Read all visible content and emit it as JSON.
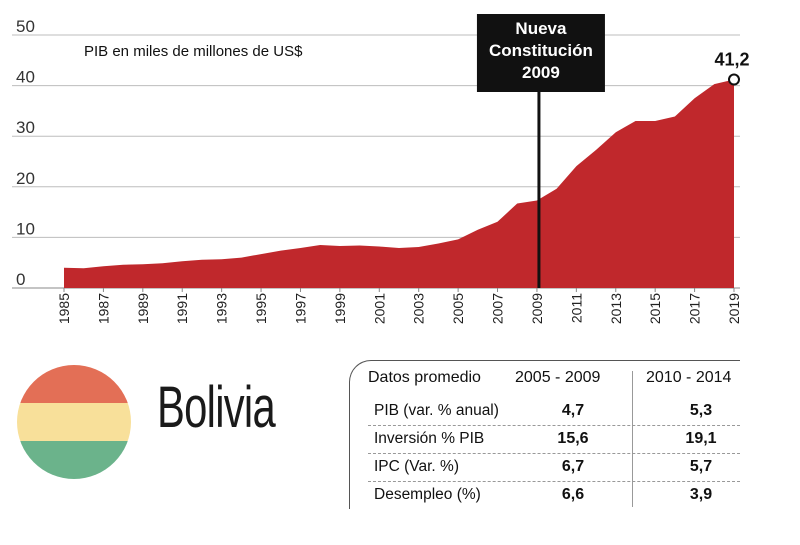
{
  "chart_data": {
    "type": "area",
    "subtitle": "PIB en miles de millones de US$",
    "ylim": [
      0,
      50
    ],
    "yticks": [
      0,
      10,
      20,
      30,
      40,
      50
    ],
    "x": [
      1985,
      1986,
      1987,
      1988,
      1989,
      1990,
      1991,
      1992,
      1993,
      1994,
      1995,
      1996,
      1997,
      1998,
      1999,
      2000,
      2001,
      2002,
      2003,
      2004,
      2005,
      2006,
      2007,
      2008,
      2009,
      2010,
      2011,
      2012,
      2013,
      2014,
      2015,
      2016,
      2017,
      2018,
      2019
    ],
    "xticks": [
      "1985",
      "1987",
      "1989",
      "1991",
      "1993",
      "1995",
      "1997",
      "1999",
      "2001",
      "2003",
      "2005",
      "2007",
      "2009",
      "2011",
      "2013",
      "2015",
      "2017",
      "2019"
    ],
    "series": [
      {
        "values": [
          4.0,
          3.9,
          4.3,
          4.6,
          4.7,
          4.9,
          5.3,
          5.6,
          5.7,
          6.0,
          6.7,
          7.4,
          7.9,
          8.5,
          8.3,
          8.4,
          8.2,
          7.9,
          8.1,
          8.8,
          9.6,
          11.5,
          13.1,
          16.7,
          17.3,
          19.6,
          24.1,
          27.3,
          30.8,
          33.0,
          33.0,
          33.9,
          37.5,
          40.3,
          41.2
        ],
        "color": "#c0282c"
      }
    ],
    "annotations": [
      {
        "x": 2009,
        "text": "Nueva\nConstitución\n2009"
      }
    ],
    "end_label": "41,2"
  },
  "country": "Bolivia",
  "flag_colors": [
    "#e36f56",
    "#f8e09a",
    "#6bb38b"
  ],
  "table": {
    "headers": [
      "Datos promedio",
      "2005 - 2009",
      "2010 - 2014"
    ],
    "rows": [
      {
        "label": "PIB (var. % anual)",
        "v1": "4,7",
        "v2": "5,3"
      },
      {
        "label": "Inversión % PIB",
        "v1": "15,6",
        "v2": "19,1"
      },
      {
        "label": "IPC (Var. %)",
        "v1": "6,7",
        "v2": "5,7"
      },
      {
        "label": "Desempleo (%)",
        "v1": "6,6",
        "v2": "3,9"
      }
    ]
  }
}
